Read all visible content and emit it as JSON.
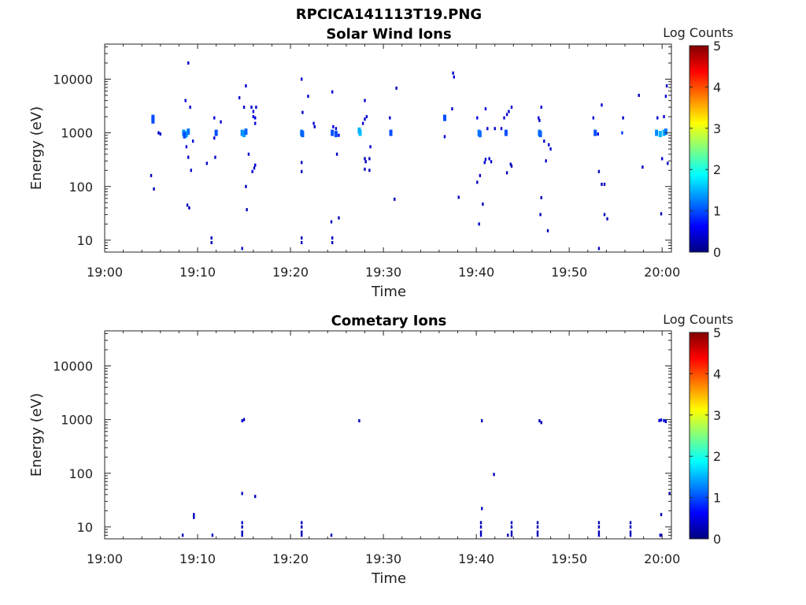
{
  "figure_title": "RPCICA141113T19.PNG",
  "chart_data": [
    {
      "type": "heatmap",
      "title": "Solar Wind Ions",
      "xlabel": "Time",
      "ylabel": "Energy (eV)",
      "yscale": "log",
      "xlim": [
        "19:00",
        "20:01"
      ],
      "ylim": [
        6,
        45000
      ],
      "x_ticks": [
        "19:00",
        "19:10",
        "19:20",
        "19:30",
        "19:40",
        "19:50",
        "20:00"
      ],
      "y_ticks": [
        "10",
        "100",
        "1000",
        "10000"
      ],
      "colorbar": {
        "label": "Log Counts",
        "min": 0,
        "max": 5,
        "ticks": [
          "0",
          "1",
          "2",
          "3",
          "4",
          "5"
        ],
        "colormap": "jet"
      },
      "grid": false,
      "points": [
        {
          "t": "19:05.2",
          "e": 1900,
          "c": 1.0
        },
        {
          "t": "19:05.2",
          "e": 1700,
          "c": 1.0
        },
        {
          "t": "19:05.3",
          "e": 90,
          "c": 0.3
        },
        {
          "t": "19:05.0",
          "e": 160,
          "c": 0.3
        },
        {
          "t": "19:05.8",
          "e": 1000,
          "c": 0.4
        },
        {
          "t": "19:06.0",
          "e": 950,
          "c": 0.4
        },
        {
          "t": "19:08.5",
          "e": 1000,
          "c": 1.3
        },
        {
          "t": "19:08.8",
          "e": 950,
          "c": 1.5
        },
        {
          "t": "19:09.0",
          "e": 1050,
          "c": 1.2
        },
        {
          "t": "19:08.6",
          "e": 900,
          "c": 1.0
        },
        {
          "t": "19:08.7",
          "e": 4000,
          "c": 0.4
        },
        {
          "t": "19:09.2",
          "e": 3000,
          "c": 0.4
        },
        {
          "t": "19:09.0",
          "e": 20000,
          "c": 0.4
        },
        {
          "t": "19:09.5",
          "e": 700,
          "c": 0.4
        },
        {
          "t": "19:08.8",
          "e": 550,
          "c": 0.4
        },
        {
          "t": "19:09.0",
          "e": 350,
          "c": 0.4
        },
        {
          "t": "19:09.3",
          "e": 200,
          "c": 0.4
        },
        {
          "t": "19:08.9",
          "e": 45,
          "c": 0.3
        },
        {
          "t": "19:09.1",
          "e": 40,
          "c": 0.3
        },
        {
          "t": "19:11.0",
          "e": 270,
          "c": 0.4
        },
        {
          "t": "19:11.5",
          "e": 11,
          "c": 0.3
        },
        {
          "t": "19:11.5",
          "e": 9,
          "c": 0.3
        },
        {
          "t": "19:11.8",
          "e": 1900,
          "c": 0.5
        },
        {
          "t": "19:12.0",
          "e": 1000,
          "c": 1.0
        },
        {
          "t": "19:11.8",
          "e": 800,
          "c": 0.4
        },
        {
          "t": "19:12.5",
          "e": 1600,
          "c": 0.4
        },
        {
          "t": "19:11.9",
          "e": 350,
          "c": 0.4
        },
        {
          "t": "19:14.8",
          "e": 1000,
          "c": 1.3
        },
        {
          "t": "19:15.0",
          "e": 950,
          "c": 1.4
        },
        {
          "t": "19:15.2",
          "e": 1050,
          "c": 1.1
        },
        {
          "t": "19:14.5",
          "e": 4500,
          "c": 0.4
        },
        {
          "t": "19:15.0",
          "e": 3000,
          "c": 0.4
        },
        {
          "t": "19:15.2",
          "e": 7500,
          "c": 0.4
        },
        {
          "t": "19:15.5",
          "e": 400,
          "c": 0.4
        },
        {
          "t": "19:15.2",
          "e": 100,
          "c": 0.3
        },
        {
          "t": "19:15.3",
          "e": 37,
          "c": 0.3
        },
        {
          "t": "19:14.8",
          "e": 7,
          "c": 0.3
        },
        {
          "t": "19:15.8",
          "e": 3000,
          "c": 0.4
        },
        {
          "t": "19:16.0",
          "e": 2500,
          "c": 0.5
        },
        {
          "t": "19:16.0",
          "e": 2000,
          "c": 0.5
        },
        {
          "t": "19:16.2",
          "e": 1900,
          "c": 0.5
        },
        {
          "t": "19:16.3",
          "e": 3000,
          "c": 0.4
        },
        {
          "t": "19:16.2",
          "e": 1500,
          "c": 0.5
        },
        {
          "t": "19:16.2",
          "e": 250,
          "c": 0.4
        },
        {
          "t": "19:16.1",
          "e": 220,
          "c": 0.4
        },
        {
          "t": "19:15.9",
          "e": 190,
          "c": 0.4
        },
        {
          "t": "19:21.2",
          "e": 1000,
          "c": 1.2
        },
        {
          "t": "19:21.3",
          "e": 950,
          "c": 1.1
        },
        {
          "t": "19:21.2",
          "e": 10000,
          "c": 0.4
        },
        {
          "t": "19:21.3",
          "e": 2400,
          "c": 0.4
        },
        {
          "t": "19:21.2",
          "e": 280,
          "c": 0.3
        },
        {
          "t": "19:21.2",
          "e": 190,
          "c": 0.3
        },
        {
          "t": "19:21.2",
          "e": 11,
          "c": 0.3
        },
        {
          "t": "19:21.2",
          "e": 9,
          "c": 0.3
        },
        {
          "t": "19:21.9",
          "e": 4800,
          "c": 0.4
        },
        {
          "t": "19:22.5",
          "e": 1500,
          "c": 0.4
        },
        {
          "t": "19:22.6",
          "e": 1300,
          "c": 0.4
        },
        {
          "t": "19:24.5",
          "e": 5800,
          "c": 0.4
        },
        {
          "t": "19:24.5",
          "e": 1000,
          "c": 1.0
        },
        {
          "t": "19:24.9",
          "e": 950,
          "c": 1.0
        },
        {
          "t": "19:24.6",
          "e": 1300,
          "c": 0.5
        },
        {
          "t": "19:25.2",
          "e": 900,
          "c": 0.5
        },
        {
          "t": "19:24.9",
          "e": 1200,
          "c": 0.4
        },
        {
          "t": "19:25.0",
          "e": 400,
          "c": 0.4
        },
        {
          "t": "19:24.5",
          "e": 11,
          "c": 0.3
        },
        {
          "t": "19:24.5",
          "e": 9,
          "c": 0.3
        },
        {
          "t": "19:24.4",
          "e": 22,
          "c": 0.3
        },
        {
          "t": "19:25.2",
          "e": 26,
          "c": 0.3
        },
        {
          "t": "19:27.5",
          "e": 1000,
          "c": 1.6
        },
        {
          "t": "19:27.4",
          "e": 1100,
          "c": 1.5
        },
        {
          "t": "19:27.8",
          "e": 1500,
          "c": 0.4
        },
        {
          "t": "19:28.0",
          "e": 1800,
          "c": 0.4
        },
        {
          "t": "19:28.0",
          "e": 4000,
          "c": 0.4
        },
        {
          "t": "19:28.2",
          "e": 2000,
          "c": 0.4
        },
        {
          "t": "19:28.0",
          "e": 330,
          "c": 0.3
        },
        {
          "t": "19:28.1",
          "e": 290,
          "c": 0.3
        },
        {
          "t": "19:28.0",
          "e": 210,
          "c": 0.3
        },
        {
          "t": "19:28.6",
          "e": 550,
          "c": 0.4
        },
        {
          "t": "19:28.5",
          "e": 330,
          "c": 0.3
        },
        {
          "t": "19:28.5",
          "e": 200,
          "c": 0.3
        },
        {
          "t": "19:30.8",
          "e": 1000,
          "c": 1.0
        },
        {
          "t": "19:30.7",
          "e": 1900,
          "c": 0.4
        },
        {
          "t": "19:31.4",
          "e": 6800,
          "c": 0.3
        },
        {
          "t": "19:31.2",
          "e": 58,
          "c": 0.3
        },
        {
          "t": "19:36.6",
          "e": 1900,
          "c": 1.0
        },
        {
          "t": "19:36.6",
          "e": 850,
          "c": 0.4
        },
        {
          "t": "19:37.4",
          "e": 2800,
          "c": 0.4
        },
        {
          "t": "19:37.5",
          "e": 13000,
          "c": 0.4
        },
        {
          "t": "19:37.6",
          "e": 11000,
          "c": 0.4
        },
        {
          "t": "19:38.1",
          "e": 63,
          "c": 0.3
        },
        {
          "t": "19:40.1",
          "e": 1900,
          "c": 0.5
        },
        {
          "t": "19:40.4",
          "e": 950,
          "c": 1.1
        },
        {
          "t": "19:40.3",
          "e": 1000,
          "c": 1.2
        },
        {
          "t": "19:40.1",
          "e": 120,
          "c": 0.3
        },
        {
          "t": "19:40.4",
          "e": 160,
          "c": 0.4
        },
        {
          "t": "19:40.3",
          "e": 20,
          "c": 0.3
        },
        {
          "t": "19:40.7",
          "e": 47,
          "c": 0.3
        },
        {
          "t": "19:40.9",
          "e": 280,
          "c": 0.4
        },
        {
          "t": "19:41.0",
          "e": 320,
          "c": 0.4
        },
        {
          "t": "19:41.0",
          "e": 2800,
          "c": 0.4
        },
        {
          "t": "19:41.2",
          "e": 1200,
          "c": 0.4
        },
        {
          "t": "19:41.4",
          "e": 330,
          "c": 0.4
        },
        {
          "t": "19:41.6",
          "e": 290,
          "c": 0.4
        },
        {
          "t": "19:42.0",
          "e": 1200,
          "c": 0.4
        },
        {
          "t": "19:42.7",
          "e": 1200,
          "c": 0.4
        },
        {
          "t": "19:43.2",
          "e": 1000,
          "c": 1.0
        },
        {
          "t": "19:43.0",
          "e": 1900,
          "c": 0.4
        },
        {
          "t": "19:43.3",
          "e": 2200,
          "c": 0.4
        },
        {
          "t": "19:43.5",
          "e": 2500,
          "c": 0.4
        },
        {
          "t": "19:43.8",
          "e": 3000,
          "c": 0.4
        },
        {
          "t": "19:43.3",
          "e": 180,
          "c": 0.3
        },
        {
          "t": "19:43.7",
          "e": 260,
          "c": 0.3
        },
        {
          "t": "19:43.8",
          "e": 240,
          "c": 0.3
        },
        {
          "t": "19:46.8",
          "e": 1000,
          "c": 1.2
        },
        {
          "t": "19:46.9",
          "e": 950,
          "c": 1.1
        },
        {
          "t": "19:46.7",
          "e": 1900,
          "c": 0.4
        },
        {
          "t": "19:46.8",
          "e": 1700,
          "c": 0.4
        },
        {
          "t": "19:47.0",
          "e": 3000,
          "c": 0.4
        },
        {
          "t": "19:47.3",
          "e": 700,
          "c": 0.4
        },
        {
          "t": "19:47.8",
          "e": 600,
          "c": 0.4
        },
        {
          "t": "19:48.0",
          "e": 500,
          "c": 0.4
        },
        {
          "t": "19:47.5",
          "e": 300,
          "c": 0.4
        },
        {
          "t": "19:47.0",
          "e": 62,
          "c": 0.3
        },
        {
          "t": "19:46.9",
          "e": 30,
          "c": 0.3
        },
        {
          "t": "19:47.7",
          "e": 15,
          "c": 0.3
        },
        {
          "t": "19:52.8",
          "e": 1000,
          "c": 1.0
        },
        {
          "t": "19:52.6",
          "e": 1900,
          "c": 0.4
        },
        {
          "t": "19:53.1",
          "e": 950,
          "c": 0.4
        },
        {
          "t": "19:53.5",
          "e": 3300,
          "c": 0.4
        },
        {
          "t": "19:53.2",
          "e": 190,
          "c": 0.3
        },
        {
          "t": "19:53.5",
          "e": 110,
          "c": 0.3
        },
        {
          "t": "19:53.8",
          "e": 110,
          "c": 0.3
        },
        {
          "t": "19:53.2",
          "e": 7,
          "c": 0.3
        },
        {
          "t": "19:53.8",
          "e": 30,
          "c": 0.3
        },
        {
          "t": "19:54.1",
          "e": 25,
          "c": 0.3
        },
        {
          "t": "19:55.7",
          "e": 1000,
          "c": 0.9
        },
        {
          "t": "19:55.8",
          "e": 1900,
          "c": 0.4
        },
        {
          "t": "19:57.5",
          "e": 5000,
          "c": 0.3
        },
        {
          "t": "19:57.9",
          "e": 230,
          "c": 0.3
        },
        {
          "t": "19:59.4",
          "e": 1000,
          "c": 1.3
        },
        {
          "t": "19:59.8",
          "e": 950,
          "c": 1.5
        },
        {
          "t": "20:00.2",
          "e": 1000,
          "c": 1.5
        },
        {
          "t": "20:00.4",
          "e": 1050,
          "c": 1.2
        },
        {
          "t": "19:59.5",
          "e": 1900,
          "c": 0.4
        },
        {
          "t": "20:00.2",
          "e": 2000,
          "c": 0.4
        },
        {
          "t": "20:00.4",
          "e": 4800,
          "c": 0.4
        },
        {
          "t": "20:00.5",
          "e": 7500,
          "c": 0.4
        },
        {
          "t": "20:00.0",
          "e": 330,
          "c": 0.4
        },
        {
          "t": "20:00.6",
          "e": 270,
          "c": 0.3
        },
        {
          "t": "19:59.9",
          "e": 31,
          "c": 0.3
        }
      ]
    },
    {
      "type": "heatmap",
      "title": "Cometary Ions",
      "xlabel": "Time",
      "ylabel": "Energy (eV)",
      "yscale": "log",
      "xlim": [
        "19:00",
        "20:01"
      ],
      "ylim": [
        6,
        45000
      ],
      "x_ticks": [
        "19:00",
        "19:10",
        "19:20",
        "19:30",
        "19:40",
        "19:50",
        "20:00"
      ],
      "y_ticks": [
        "10",
        "100",
        "1000",
        "10000"
      ],
      "colorbar": {
        "label": "Log Counts",
        "min": 0,
        "max": 5,
        "ticks": [
          "0",
          "1",
          "2",
          "3",
          "4",
          "5"
        ],
        "colormap": "jet"
      },
      "grid": false,
      "points": [
        {
          "t": "19:08.4",
          "e": 7,
          "c": 0.3
        },
        {
          "t": "19:09.6",
          "e": 17,
          "c": 0.3
        },
        {
          "t": "19:09.6",
          "e": 15,
          "c": 0.3
        },
        {
          "t": "19:11.6",
          "e": 7,
          "c": 0.3
        },
        {
          "t": "19:14.8",
          "e": 950,
          "c": 0.4
        },
        {
          "t": "19:15.0",
          "e": 1000,
          "c": 0.3
        },
        {
          "t": "19:14.8",
          "e": 42,
          "c": 0.3
        },
        {
          "t": "19:16.2",
          "e": 37,
          "c": 0.3
        },
        {
          "t": "19:14.8",
          "e": 12,
          "c": 0.3
        },
        {
          "t": "19:14.8",
          "e": 10,
          "c": 0.3
        },
        {
          "t": "19:14.8",
          "e": 8,
          "c": 0.3
        },
        {
          "t": "19:14.8",
          "e": 7,
          "c": 0.3
        },
        {
          "t": "19:21.2",
          "e": 12,
          "c": 0.3
        },
        {
          "t": "19:21.2",
          "e": 10,
          "c": 0.3
        },
        {
          "t": "19:21.2",
          "e": 8,
          "c": 0.3
        },
        {
          "t": "19:21.2",
          "e": 7,
          "c": 0.3
        },
        {
          "t": "19:24.4",
          "e": 7,
          "c": 0.3
        },
        {
          "t": "19:27.4",
          "e": 950,
          "c": 0.3
        },
        {
          "t": "19:40.6",
          "e": 950,
          "c": 0.3
        },
        {
          "t": "19:40.6",
          "e": 22,
          "c": 0.3
        },
        {
          "t": "19:40.5",
          "e": 12,
          "c": 0.3
        },
        {
          "t": "19:40.5",
          "e": 10,
          "c": 0.3
        },
        {
          "t": "19:40.5",
          "e": 8,
          "c": 0.3
        },
        {
          "t": "19:40.5",
          "e": 7,
          "c": 0.3
        },
        {
          "t": "19:41.9",
          "e": 95,
          "c": 0.3
        },
        {
          "t": "19:43.4",
          "e": 7,
          "c": 0.3
        },
        {
          "t": "19:43.8",
          "e": 12,
          "c": 0.3
        },
        {
          "t": "19:43.8",
          "e": 10,
          "c": 0.3
        },
        {
          "t": "19:43.8",
          "e": 8,
          "c": 0.3
        },
        {
          "t": "19:43.8",
          "e": 7,
          "c": 0.3
        },
        {
          "t": "19:46.6",
          "e": 12,
          "c": 0.3
        },
        {
          "t": "19:46.6",
          "e": 10,
          "c": 0.3
        },
        {
          "t": "19:46.6",
          "e": 8,
          "c": 0.3
        },
        {
          "t": "19:46.6",
          "e": 7,
          "c": 0.3
        },
        {
          "t": "19:46.8",
          "e": 950,
          "c": 0.3
        },
        {
          "t": "19:47.0",
          "e": 880,
          "c": 0.3
        },
        {
          "t": "19:53.2",
          "e": 12,
          "c": 0.3
        },
        {
          "t": "19:53.2",
          "e": 10,
          "c": 0.3
        },
        {
          "t": "19:53.2",
          "e": 8,
          "c": 0.3
        },
        {
          "t": "19:53.2",
          "e": 7,
          "c": 0.3
        },
        {
          "t": "19:56.6",
          "e": 12,
          "c": 0.3
        },
        {
          "t": "19:56.6",
          "e": 10,
          "c": 0.3
        },
        {
          "t": "19:56.6",
          "e": 8,
          "c": 0.3
        },
        {
          "t": "19:56.6",
          "e": 7,
          "c": 0.3
        },
        {
          "t": "19:59.7",
          "e": 960,
          "c": 0.4
        },
        {
          "t": "19:59.9",
          "e": 980,
          "c": 0.4
        },
        {
          "t": "20:00.2",
          "e": 960,
          "c": 0.4
        },
        {
          "t": "20:00.4",
          "e": 920,
          "c": 0.4
        },
        {
          "t": "19:59.9",
          "e": 17,
          "c": 0.3
        },
        {
          "t": "19:59.8",
          "e": 7,
          "c": 0.4
        },
        {
          "t": "19:59.9",
          "e": 7,
          "c": 0.4
        },
        {
          "t": "20:00.8",
          "e": 42,
          "c": 0.3
        }
      ]
    }
  ]
}
